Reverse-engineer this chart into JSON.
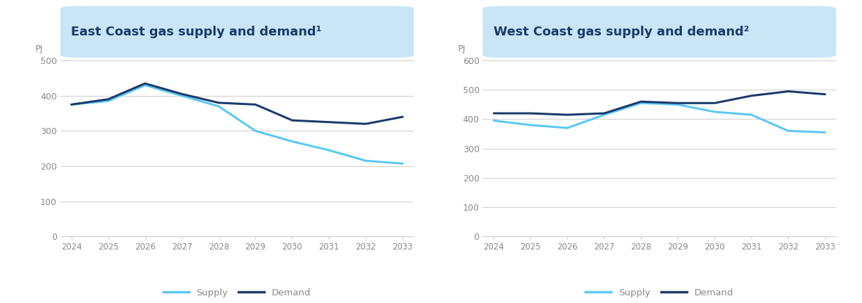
{
  "years": [
    2024,
    2025,
    2026,
    2027,
    2028,
    2029,
    2030,
    2031,
    2032,
    2033
  ],
  "east_supply": [
    375,
    385,
    430,
    400,
    370,
    300,
    270,
    245,
    215,
    207
  ],
  "east_demand": [
    375,
    390,
    435,
    405,
    380,
    375,
    330,
    325,
    320,
    340
  ],
  "west_supply": [
    395,
    380,
    370,
    415,
    455,
    450,
    425,
    415,
    360,
    355
  ],
  "west_demand": [
    420,
    420,
    415,
    420,
    460,
    455,
    455,
    480,
    495,
    485
  ],
  "east_title": "East Coast gas supply and demand¹",
  "west_title": "West Coast gas supply and demand²",
  "supply_color": "#5BC8F5",
  "demand_color": "#1B3A6B",
  "title_bg_color": "#C8E6F5",
  "bg_color": "#FFFFFF",
  "grid_color": "#CCCCCC",
  "tick_label_color": "#888888",
  "title_text_color": "#1B3A6B",
  "east_ylim": [
    0,
    500
  ],
  "east_yticks": [
    0,
    100,
    200,
    300,
    400,
    500
  ],
  "west_ylim": [
    0,
    600
  ],
  "west_yticks": [
    0,
    100,
    200,
    300,
    400,
    500,
    600
  ],
  "ylabel_text": "PJ",
  "legend_supply": "Supply",
  "legend_demand": "Demand",
  "line_width": 2.2
}
